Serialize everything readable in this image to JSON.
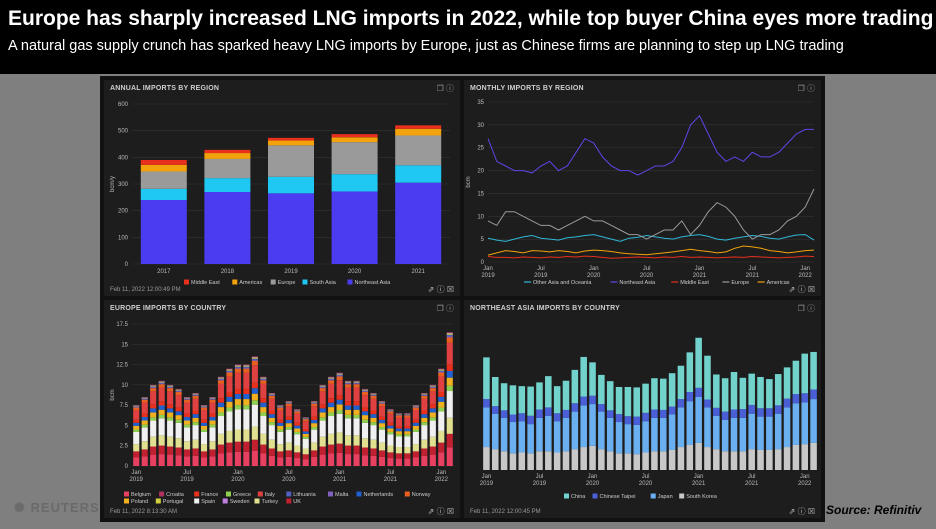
{
  "header": {
    "title": "Europe has sharply increased LNG imports in 2022, while top buyer China eyes more trading",
    "subtitle": "A natural gas supply crunch has sparked heavy LNG imports by Europe, just as Chinese firms are planning to step up LNG trading"
  },
  "panels": {
    "annual": {
      "title": "ANNUAL IMPORTS BY REGION",
      "footer": "Feb 11, 2022 12:00:49 PM"
    },
    "monthly": {
      "title": "MONTHLY IMPORTS BY REGION",
      "footer": ""
    },
    "europe": {
      "title": "EUROPE IMPORTS BY COUNTRY",
      "footer": "Feb 11, 2022 8:13:30 AM"
    },
    "nea": {
      "title": "NORTHEAST ASIA IMPORTS BY COUNTRY",
      "footer": "Feb 11, 2022 12:00:45 PM"
    }
  },
  "colors": {
    "Middle East": "#e8301c",
    "Americas": "#f2a20a",
    "Europe": "#9a9a9a",
    "South Asia": "#1ec8f2",
    "Northeast Asia": "#4b3cf2",
    "Other Asia and Oceania": "#2fb8d8",
    "Northeast Asia line": "#5b47e8",
    "China": "#72d2cc",
    "Chinese Taipei": "#4a5fd6",
    "Japan": "#6ab0f0",
    "South Korea": "#c8c8c8"
  },
  "icons": [
    "logo-icon",
    "window-icon",
    "help-icon",
    "share-icon",
    "info-icon",
    "close-icon"
  ],
  "branding": {
    "logo": "REUTERS",
    "source": "Source: Refinitiv"
  },
  "chart_data": [
    {
      "type": "bar",
      "title": "ANNUAL IMPORTS BY REGION",
      "ylabel": "bcm/y",
      "ylim": [
        0,
        600
      ],
      "yticks": [
        "0",
        "100",
        "200",
        "300",
        "400",
        "500",
        "600"
      ],
      "categories": [
        "2017",
        "2018",
        "2019",
        "2020",
        "2021"
      ],
      "series": [
        {
          "name": "Northeast Asia",
          "values": [
            240,
            270,
            265,
            272,
            305
          ]
        },
        {
          "name": "South Asia",
          "values": [
            42,
            52,
            62,
            65,
            65
          ]
        },
        {
          "name": "Europe",
          "values": [
            65,
            72,
            118,
            120,
            112
          ]
        },
        {
          "name": "Americas",
          "values": [
            25,
            22,
            18,
            18,
            25
          ]
        },
        {
          "name": "Middle East",
          "values": [
            18,
            12,
            10,
            12,
            13
          ]
        }
      ],
      "legend": [
        "Middle East",
        "Americas",
        "Europe",
        "South Asia",
        "Northeast Asia"
      ]
    },
    {
      "type": "line",
      "title": "MONTHLY IMPORTS BY REGION",
      "ylabel": "bcm",
      "ylim": [
        0,
        35
      ],
      "yticks": [
        "0",
        "5",
        "10",
        "15",
        "20",
        "25",
        "30",
        "35"
      ],
      "xticks": [
        {
          "label": "Jan",
          "year": "2019"
        },
        {
          "label": "Jul",
          "year": "2019"
        },
        {
          "label": "Jan",
          "year": "2020"
        },
        {
          "label": "Jul",
          "year": "2020"
        },
        {
          "label": "Jan",
          "year": "2021"
        },
        {
          "label": "Jul",
          "year": "2021"
        },
        {
          "label": "Jan",
          "year": "2022"
        }
      ],
      "series": [
        {
          "name": "Other Asia and Oceania",
          "values": [
            5.2,
            4.8,
            4.5,
            5.0,
            5.5,
            5.8,
            5.2,
            5.0,
            4.8,
            5.3,
            5.5,
            5.8,
            6.0,
            5.5,
            5.0,
            4.5,
            5.2,
            5.4,
            5.8,
            5.5,
            5.2,
            5.0,
            5.5,
            5.8,
            6.0,
            5.6,
            5.0,
            4.8,
            5.2,
            5.5,
            5.8,
            5.6,
            5.2,
            5.0,
            5.5,
            5.9,
            6.0,
            4.8
          ]
        },
        {
          "name": "Northeast Asia",
          "values": [
            27,
            22,
            21,
            20,
            20,
            19.5,
            21,
            22,
            20,
            21,
            24,
            27,
            26,
            23,
            21,
            20,
            20,
            19,
            20,
            21,
            21,
            22,
            25,
            30,
            32,
            28,
            24,
            22,
            23,
            22,
            24,
            23,
            23,
            24,
            26,
            28,
            29,
            29
          ]
        },
        {
          "name": "Middle East",
          "values": [
            1.2,
            1.0,
            1.0,
            0.9,
            1.1,
            1.0,
            0.9,
            1.1,
            1.0,
            1.2,
            1.1,
            1.3,
            1.2,
            1.0,
            0.8,
            0.9,
            1.0,
            1.1,
            1.0,
            0.9,
            1.1,
            1.0,
            1.2,
            1.0,
            1.1,
            1.0,
            0.9,
            1.0,
            1.1,
            1.0,
            1.2,
            1.1,
            1.0,
            0.9,
            1.0,
            1.1,
            1.3,
            1.2
          ]
        },
        {
          "name": "Europe",
          "values": [
            9,
            8,
            11,
            11,
            10,
            9,
            8,
            8,
            7,
            8,
            9,
            10,
            9,
            9,
            8,
            7,
            6,
            6,
            5,
            6,
            7,
            7,
            9,
            6,
            8,
            11,
            13,
            12,
            10,
            7,
            5,
            6,
            6,
            7,
            9,
            10,
            12,
            16
          ]
        },
        {
          "name": "Americas",
          "values": [
            1.5,
            2.0,
            2.5,
            2.3,
            2.0,
            2.5,
            2.4,
            2.2,
            2.5,
            2.3,
            2.0,
            2.4,
            2.6,
            2.5,
            2.3,
            2.0,
            1.8,
            1.7,
            1.6,
            1.8,
            2.0,
            2.2,
            2.5,
            2.8,
            2.5,
            2.3,
            2.0,
            2.2,
            3.0,
            3.5,
            3.3,
            3.0,
            2.5,
            2.3,
            2.0,
            2.2,
            2.5,
            2.6
          ]
        }
      ],
      "legend": [
        "Other Asia and Oceania",
        "Northeast Asia",
        "Middle East",
        "Europe",
        "Americas"
      ]
    },
    {
      "type": "bar",
      "title": "EUROPE IMPORTS BY COUNTRY",
      "ylabel": "bcm",
      "ylim": [
        0,
        17.5
      ],
      "yticks": [
        "0",
        "2.5",
        "5",
        "7.5",
        "10",
        "12.5",
        "15",
        "17.5"
      ],
      "xticks": [
        {
          "label": "Jan",
          "year": "2019"
        },
        {
          "label": "Jul",
          "year": "2019"
        },
        {
          "label": "Jan",
          "year": "2020"
        },
        {
          "label": "Jul",
          "year": "2020"
        },
        {
          "label": "Jan",
          "year": "2021"
        },
        {
          "label": "Jul",
          "year": "2021"
        },
        {
          "label": "Jan",
          "year": "2022"
        }
      ],
      "totals": [
        7.5,
        8.5,
        10,
        10.5,
        10,
        9.5,
        8.5,
        9,
        7.5,
        8.5,
        11,
        12,
        12.5,
        12.5,
        13.5,
        11,
        9,
        7.5,
        8,
        7,
        6,
        8,
        10,
        11,
        11.5,
        10.5,
        10.5,
        9.5,
        9,
        8,
        7,
        6.5,
        6.5,
        7.5,
        9,
        10,
        12,
        16.5
      ],
      "legend": [
        "Belgium",
        "Croatia",
        "France",
        "Greece",
        "Italy",
        "Lithuania",
        "Malta",
        "Netherlands",
        "Norway",
        "Poland",
        "Portugal",
        "Spain",
        "Sweden",
        "Turkey",
        "UK"
      ],
      "legend_colors": [
        "#e84060",
        "#b03060",
        "#e8301c",
        "#90d050",
        "#e04040",
        "#5060c0",
        "#8060c0",
        "#2060d0",
        "#e86020",
        "#f0b020",
        "#d0d040",
        "#f0f0f0",
        "#c080e0",
        "#e0e090",
        "#c02030"
      ]
    },
    {
      "type": "bar",
      "title": "NORTHEAST ASIA IMPORTS BY COUNTRY",
      "ylabel": "",
      "ylim": [
        0,
        35
      ],
      "xticks": [
        {
          "label": "Jan",
          "year": "2019"
        },
        {
          "label": "Jul",
          "year": "2019"
        },
        {
          "label": "Jan",
          "year": "2020"
        },
        {
          "label": "Jul",
          "year": "2020"
        },
        {
          "label": "Jan",
          "year": "2021"
        },
        {
          "label": "Jul",
          "year": "2021"
        },
        {
          "label": "Jan",
          "year": "2022"
        }
      ],
      "series": [
        {
          "name": "South Korea",
          "values": [
            5.5,
            5.0,
            4.5,
            4.0,
            4.2,
            4.0,
            4.5,
            4.5,
            4.2,
            4.5,
            5.0,
            5.5,
            5.8,
            5.0,
            4.5,
            4.0,
            4.0,
            3.8,
            4.2,
            4.5,
            4.5,
            4.8,
            5.5,
            6.0,
            6.5,
            5.5,
            5.0,
            4.5,
            4.5,
            4.5,
            5.0,
            4.8,
            4.8,
            5.0,
            5.5,
            6.0,
            6.2,
            6.5
          ]
        },
        {
          "name": "Japan",
          "values": [
            9.5,
            8.5,
            8.0,
            7.5,
            7.5,
            7.0,
            8.0,
            8.5,
            7.5,
            8.0,
            9.0,
            10.0,
            10.0,
            9.0,
            8.0,
            7.5,
            7.0,
            7.0,
            7.5,
            8.0,
            8.0,
            8.5,
            9.5,
            10.5,
            11.0,
            9.5,
            8.0,
            7.5,
            8.0,
            8.0,
            8.5,
            8.0,
            8.0,
            8.5,
            9.5,
            10.0,
            10.0,
            10.5
          ]
        },
        {
          "name": "Chinese Taipei",
          "values": [
            2.0,
            1.8,
            1.8,
            1.8,
            1.9,
            2.0,
            2.0,
            2.0,
            1.9,
            1.9,
            2.0,
            2.1,
            2.0,
            1.8,
            1.8,
            1.9,
            1.9,
            2.0,
            2.0,
            2.0,
            1.9,
            1.9,
            2.0,
            2.2,
            2.2,
            1.9,
            1.9,
            2.0,
            2.0,
            2.1,
            2.1,
            2.0,
            2.0,
            2.0,
            2.1,
            2.2,
            2.2,
            2.3
          ]
        },
        {
          "name": "China",
          "values": [
            10,
            7,
            6.5,
            7,
            6.5,
            7,
            6.5,
            7.5,
            6.5,
            7,
            8,
            9.5,
            8,
            7,
            7,
            6.5,
            7,
            7,
            7,
            7.5,
            7.5,
            8,
            8,
            9.5,
            12,
            10.5,
            8,
            8,
            9,
            7.5,
            7.5,
            7.5,
            7,
            7.5,
            7.5,
            8,
            9.5,
            9
          ]
        }
      ],
      "legend": [
        "China",
        "Chinese Taipei",
        "Japan",
        "South Korea"
      ]
    }
  ]
}
